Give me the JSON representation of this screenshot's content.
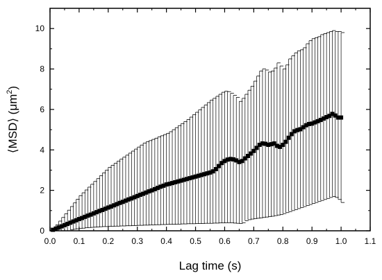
{
  "chart_data": {
    "type": "line",
    "title": "",
    "xlabel": "Lag time (s)",
    "ylabel_parts": {
      "main": "⟨MSD⟩ (μm",
      "superscript": "2",
      "close": ")"
    },
    "xlim": [
      0.0,
      1.1
    ],
    "ylim": [
      0,
      11
    ],
    "xticks": [
      "0.0",
      "0.1",
      "0.2",
      "0.3",
      "0.4",
      "0.5",
      "0.6",
      "0.7",
      "0.8",
      "0.9",
      "1.0",
      "1.1"
    ],
    "xtick_values": [
      0.0,
      0.1,
      0.2,
      0.3,
      0.4,
      0.5,
      0.6,
      0.7,
      0.8,
      0.9,
      1.0,
      1.1
    ],
    "yticks": [
      "0",
      "2",
      "4",
      "6",
      "8",
      "10"
    ],
    "ytick_values": [
      0,
      2,
      4,
      6,
      8,
      10
    ],
    "grid": false,
    "legend": "none",
    "marker": "filled-square",
    "error_bars": "asymmetric",
    "colors": {
      "series": "#000000",
      "axes": "#000000",
      "background": "#ffffff"
    },
    "series": [
      {
        "x": [
          0.01,
          0.02,
          0.03,
          0.04,
          0.05,
          0.06,
          0.07,
          0.08,
          0.09,
          0.1,
          0.11,
          0.12,
          0.13,
          0.14,
          0.15,
          0.16,
          0.17,
          0.18,
          0.19,
          0.2,
          0.21,
          0.22,
          0.23,
          0.24,
          0.25,
          0.26,
          0.27,
          0.28,
          0.29,
          0.3,
          0.31,
          0.32,
          0.33,
          0.34,
          0.35,
          0.36,
          0.37,
          0.38,
          0.39,
          0.4,
          0.41,
          0.42,
          0.43,
          0.44,
          0.45,
          0.46,
          0.47,
          0.48,
          0.49,
          0.5,
          0.51,
          0.52,
          0.53,
          0.54,
          0.55,
          0.56,
          0.57,
          0.58,
          0.59,
          0.6,
          0.61,
          0.62,
          0.63,
          0.64,
          0.65,
          0.66,
          0.67,
          0.68,
          0.69,
          0.7,
          0.71,
          0.72,
          0.73,
          0.74,
          0.75,
          0.76,
          0.77,
          0.78,
          0.79,
          0.8,
          0.81,
          0.82,
          0.83,
          0.84,
          0.85,
          0.86,
          0.87,
          0.88,
          0.89,
          0.9,
          0.91,
          0.92,
          0.93,
          0.94,
          0.95,
          0.96,
          0.97,
          0.98,
          0.99,
          1.0
        ],
        "y": [
          0.05,
          0.11,
          0.16,
          0.22,
          0.28,
          0.34,
          0.4,
          0.46,
          0.52,
          0.58,
          0.63,
          0.69,
          0.75,
          0.8,
          0.86,
          0.92,
          0.98,
          1.03,
          1.09,
          1.15,
          1.2,
          1.26,
          1.32,
          1.38,
          1.43,
          1.49,
          1.55,
          1.6,
          1.66,
          1.72,
          1.78,
          1.83,
          1.89,
          1.95,
          2.0,
          2.06,
          2.12,
          2.18,
          2.23,
          2.29,
          2.32,
          2.36,
          2.4,
          2.44,
          2.48,
          2.52,
          2.56,
          2.6,
          2.64,
          2.68,
          2.72,
          2.76,
          2.8,
          2.84,
          2.88,
          2.94,
          3.05,
          3.2,
          3.35,
          3.45,
          3.52,
          3.55,
          3.53,
          3.48,
          3.4,
          3.45,
          3.58,
          3.7,
          3.82,
          3.95,
          4.1,
          4.25,
          4.32,
          4.3,
          4.25,
          4.28,
          4.32,
          4.2,
          4.15,
          4.25,
          4.4,
          4.6,
          4.78,
          4.92,
          4.98,
          5.02,
          5.12,
          5.22,
          5.28,
          5.3,
          5.36,
          5.42,
          5.48,
          5.55,
          5.62,
          5.68,
          5.78,
          5.7,
          5.6,
          5.6
        ],
        "upper": [
          0.12,
          0.3,
          0.48,
          0.66,
          0.84,
          1.02,
          1.2,
          1.38,
          1.56,
          1.74,
          1.88,
          2.02,
          2.16,
          2.3,
          2.44,
          2.58,
          2.72,
          2.86,
          3.0,
          3.14,
          3.24,
          3.34,
          3.44,
          3.54,
          3.64,
          3.74,
          3.84,
          3.94,
          4.04,
          4.14,
          4.24,
          4.34,
          4.4,
          4.46,
          4.52,
          4.58,
          4.64,
          4.7,
          4.76,
          4.82,
          4.9,
          5.0,
          5.1,
          5.2,
          5.3,
          5.4,
          5.5,
          5.62,
          5.74,
          5.86,
          5.98,
          6.1,
          6.22,
          6.34,
          6.46,
          6.55,
          6.65,
          6.75,
          6.85,
          6.9,
          6.88,
          6.8,
          6.7,
          6.6,
          6.4,
          6.55,
          6.75,
          6.95,
          7.15,
          7.4,
          7.65,
          7.9,
          8.0,
          7.95,
          7.85,
          7.9,
          8.05,
          8.3,
          8.15,
          8.0,
          8.2,
          8.5,
          8.65,
          8.8,
          8.9,
          8.95,
          9.05,
          9.25,
          9.4,
          9.5,
          9.55,
          9.6,
          9.7,
          9.75,
          9.8,
          9.85,
          9.9,
          9.85,
          9.85,
          9.8
        ],
        "lower": [
          0.0,
          0.0,
          0.0,
          0.0,
          0.0,
          0.0,
          0.05,
          0.08,
          0.1,
          0.12,
          0.13,
          0.15,
          0.16,
          0.17,
          0.18,
          0.19,
          0.2,
          0.21,
          0.21,
          0.22,
          0.22,
          0.23,
          0.23,
          0.24,
          0.24,
          0.25,
          0.25,
          0.26,
          0.26,
          0.27,
          0.27,
          0.28,
          0.28,
          0.29,
          0.29,
          0.3,
          0.3,
          0.31,
          0.31,
          0.32,
          0.32,
          0.32,
          0.33,
          0.33,
          0.34,
          0.34,
          0.35,
          0.35,
          0.35,
          0.36,
          0.36,
          0.36,
          0.37,
          0.37,
          0.37,
          0.38,
          0.38,
          0.39,
          0.39,
          0.4,
          0.4,
          0.4,
          0.38,
          0.37,
          0.36,
          0.4,
          0.5,
          0.55,
          0.58,
          0.6,
          0.62,
          0.64,
          0.66,
          0.68,
          0.7,
          0.72,
          0.75,
          0.78,
          0.8,
          0.85,
          0.9,
          0.95,
          1.0,
          1.05,
          1.1,
          1.15,
          1.2,
          1.25,
          1.3,
          1.35,
          1.4,
          1.45,
          1.5,
          1.55,
          1.6,
          1.65,
          1.7,
          1.65,
          1.55,
          1.4
        ]
      }
    ]
  }
}
